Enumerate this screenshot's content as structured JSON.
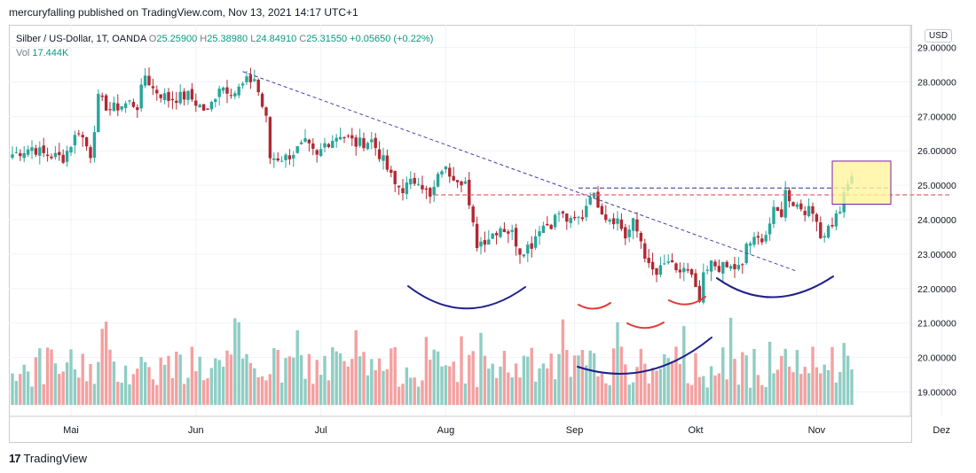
{
  "header": {
    "published_line": "mercuryfalling published on TradingView.com, Nov 13, 2021 14:17 UTC+1"
  },
  "legend": {
    "symbol": "Silber / US-Dollar, 1T, OANDA",
    "open_label": "O",
    "open": "25.25900",
    "high_label": "H",
    "high": "25.38980",
    "low_label": "L",
    "low": "24.84910",
    "close_label": "C",
    "close": "25.31550",
    "change": "+0.05650 (+0.22%)",
    "vol_label": "Vol",
    "vol": "17.444K"
  },
  "currency_badge": "USD",
  "footer": {
    "logo_mark": "17",
    "brand": "TradingView"
  },
  "colors": {
    "up": "#26a69a",
    "down": "#b22833",
    "vol_up": "#8fcdc4",
    "vol_down": "#f4a0a0",
    "trend": "#3f3fa8",
    "resistance_red": "#e06666",
    "resistance_blue": "#2e2e8c",
    "arc_blue": "#1f1f8a",
    "arc_red": "#e53935",
    "highlight": "#fff59d"
  },
  "chart_data": {
    "type": "candlestick",
    "title": "Silber / US-Dollar, 1T, OANDA",
    "x_tick_labels": [
      "Mai",
      "Jun",
      "Jul",
      "Aug",
      "Sep",
      "Okt",
      "Nov",
      "Dez"
    ],
    "y_tick_labels": [
      "19.00000",
      "20.00000",
      "21.00000",
      "22.00000",
      "23.00000",
      "24.00000",
      "25.00000",
      "26.00000",
      "27.00000",
      "28.00000",
      "29.00000"
    ],
    "ylim": [
      18.6,
      29.4
    ],
    "trading_days": 165,
    "months": [
      {
        "label": "Mai",
        "day_index": 15
      },
      {
        "label": "Jun",
        "day_index": 47
      },
      {
        "label": "Jul",
        "day_index": 79
      },
      {
        "label": "Aug",
        "day_index": 111
      },
      {
        "label": "Sep",
        "day_index": 144
      },
      {
        "label": "Okt",
        "day_index": 175
      },
      {
        "label": "Nov",
        "day_index": 206
      },
      {
        "label": "Dez",
        "day_index": 238
      }
    ],
    "price_path": [
      [
        0,
        25.9
      ],
      [
        5,
        26.1
      ],
      [
        8,
        25.9
      ],
      [
        13,
        25.8
      ],
      [
        17,
        26.6
      ],
      [
        20,
        25.9
      ],
      [
        22,
        27.5
      ],
      [
        25,
        27.2
      ],
      [
        30,
        27.4
      ],
      [
        32,
        27.3
      ],
      [
        34,
        28.2
      ],
      [
        36,
        27.8
      ],
      [
        40,
        27.5
      ],
      [
        45,
        27.6
      ],
      [
        50,
        27.1
      ],
      [
        53,
        27.9
      ],
      [
        57,
        27.7
      ],
      [
        60,
        28.0
      ],
      [
        62,
        28.1
      ],
      [
        65,
        26.9
      ],
      [
        66,
        25.8
      ],
      [
        70,
        25.8
      ],
      [
        75,
        26.2
      ],
      [
        78,
        25.8
      ],
      [
        80,
        26.2
      ],
      [
        84,
        26.5
      ],
      [
        88,
        26.2
      ],
      [
        92,
        26.3
      ],
      [
        95,
        25.7
      ],
      [
        98,
        25.0
      ],
      [
        100,
        24.9
      ],
      [
        104,
        25.2
      ],
      [
        107,
        24.6
      ],
      [
        110,
        25.5
      ],
      [
        113,
        25.3
      ],
      [
        116,
        25.1
      ],
      [
        117,
        24.3
      ],
      [
        119,
        23.3
      ],
      [
        122,
        23.5
      ],
      [
        125,
        23.8
      ],
      [
        128,
        23.6
      ],
      [
        130,
        23.1
      ],
      [
        133,
        23.3
      ],
      [
        135,
        23.8
      ],
      [
        138,
        23.9
      ],
      [
        140,
        24.2
      ],
      [
        143,
        23.9
      ],
      [
        146,
        24.1
      ],
      [
        148,
        24.8
      ],
      [
        150,
        24.5
      ],
      [
        152,
        24.1
      ],
      [
        155,
        24.0
      ],
      [
        157,
        23.5
      ],
      [
        159,
        23.9
      ],
      [
        161,
        23.4
      ],
      [
        162,
        23.0
      ],
      [
        163,
        22.6
      ],
      [
        165,
        22.4
      ],
      [
        168,
        22.8
      ],
      [
        170,
        22.4
      ],
      [
        172,
        22.6
      ],
      [
        174,
        22.3
      ],
      [
        175,
        21.9
      ],
      [
        176,
        21.6
      ],
      [
        177,
        22.3
      ],
      [
        179,
        22.7
      ],
      [
        182,
        22.6
      ],
      [
        185,
        22.6
      ],
      [
        187,
        22.6
      ],
      [
        188,
        23.3
      ],
      [
        191,
        23.4
      ],
      [
        193,
        23.6
      ],
      [
        195,
        24.2
      ],
      [
        197,
        24.2
      ],
      [
        198,
        24.8
      ],
      [
        200,
        24.5
      ],
      [
        203,
        24.3
      ],
      [
        206,
        24.1
      ],
      [
        207,
        23.5
      ],
      [
        210,
        23.9
      ],
      [
        212,
        24.3
      ],
      [
        214,
        25.0
      ],
      [
        215,
        25.3
      ]
    ],
    "volume_range": [
      0.5,
      2.7
    ],
    "annotations": {
      "trendline": {
        "from": {
          "day": 59,
          "price": 28.3
        },
        "to": {
          "day": 201,
          "price": 22.5
        }
      },
      "resistance_red": {
        "from_day": 108,
        "to_day": 240,
        "price": 24.72
      },
      "resistance_blue": {
        "from_day": 145,
        "to_day": 225,
        "price": 24.92
      },
      "breakout_box": {
        "day_from": 210,
        "day_to": 225,
        "price_low": 24.45,
        "price_high": 25.7
      }
    }
  }
}
